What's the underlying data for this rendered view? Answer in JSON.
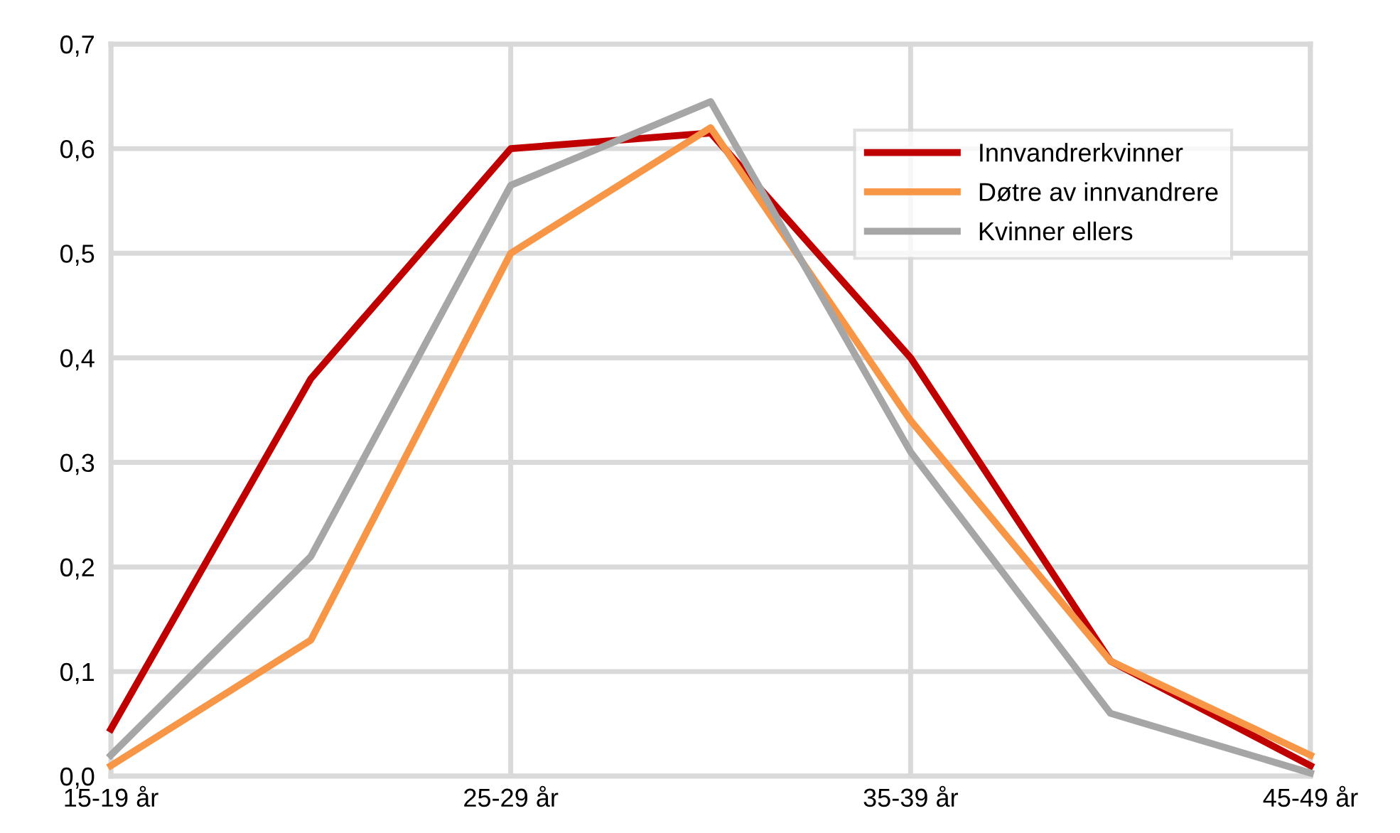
{
  "chart_data": {
    "type": "line",
    "categories": [
      "15-19 år",
      null,
      "25-29 år",
      null,
      "35-39 år",
      null,
      "45-49 år"
    ],
    "series": [
      {
        "name": "Innvandrerkvinner",
        "color": "#c00000",
        "values": [
          0.045,
          0.38,
          0.6,
          0.615,
          0.4,
          0.11,
          0.01
        ]
      },
      {
        "name": "Døtre av innvandrere",
        "color": "#f79646",
        "values": [
          0.01,
          0.13,
          0.5,
          0.62,
          0.34,
          0.11,
          0.02
        ]
      },
      {
        "name": "Kvinner ellers",
        "color": "#a6a6a6",
        "values": [
          0.02,
          0.21,
          0.565,
          0.645,
          0.31,
          0.06,
          0.003
        ]
      }
    ],
    "ylim": [
      0,
      0.7
    ],
    "yticks": [
      {
        "value": 0,
        "label": "0,0"
      },
      {
        "value": 0.1,
        "label": "0,1"
      },
      {
        "value": 0.2,
        "label": "0,2"
      },
      {
        "value": 0.3,
        "label": "0,3"
      },
      {
        "value": 0.4,
        "label": "0,4"
      },
      {
        "value": 0.5,
        "label": "0,5"
      },
      {
        "value": 0.6,
        "label": "0,6"
      },
      {
        "value": 0.7,
        "label": "0,7"
      }
    ],
    "grid": true,
    "legend": "top right",
    "line_style": "solid"
  }
}
